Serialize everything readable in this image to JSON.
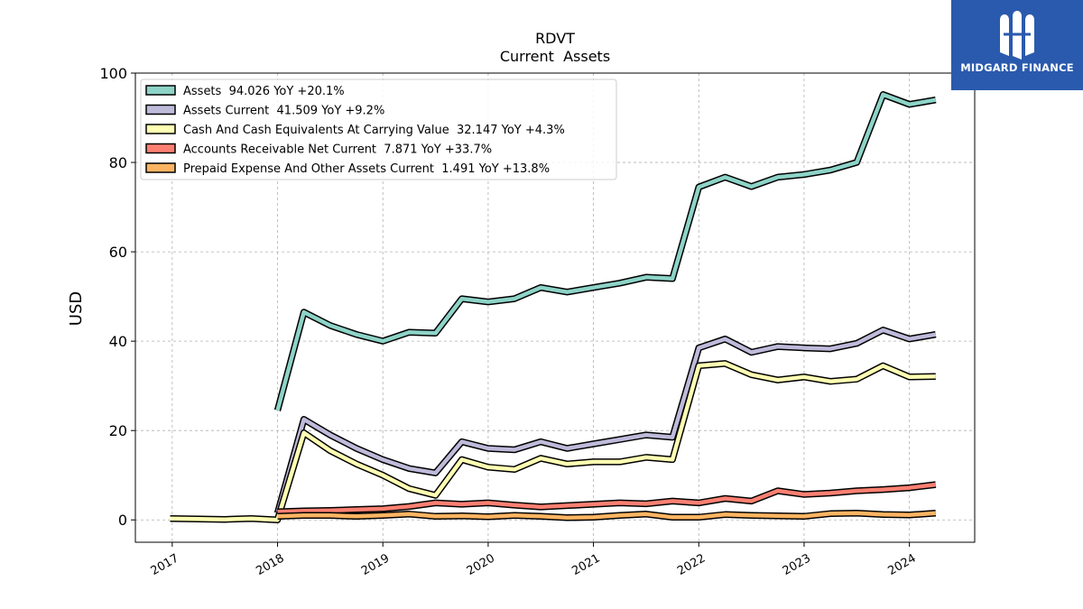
{
  "chart_data": {
    "type": "line",
    "title": "RDVT",
    "subtitle": "Current  Assets",
    "xlabel": "",
    "ylabel": "USD",
    "ylim": [
      -5,
      100
    ],
    "xlim": [
      2016.65,
      2024.62
    ],
    "yticks": [
      0,
      20,
      40,
      60,
      80,
      100
    ],
    "xticks": [
      "2017",
      "2018",
      "2019",
      "2020",
      "2021",
      "2022",
      "2023",
      "2024"
    ],
    "grid": true,
    "legend_position": "top-left",
    "series": [
      {
        "name": "Assets  94.026 YoY +20.1%",
        "color": "#8dd3c7",
        "x": [
          2018.0,
          2018.25,
          2018.5,
          2018.75,
          2019.0,
          2019.25,
          2019.5,
          2019.75,
          2020.0,
          2020.25,
          2020.5,
          2020.75,
          2021.0,
          2021.25,
          2021.5,
          2021.75,
          2022.0,
          2022.25,
          2022.5,
          2022.75,
          2023.0,
          2023.25,
          2023.5,
          2023.75,
          2024.0,
          2024.25
        ],
        "y": [
          24.5,
          46.5,
          43.5,
          41.5,
          40.0,
          42.0,
          41.8,
          49.5,
          48.8,
          49.5,
          52.0,
          51.0,
          52.0,
          53.0,
          54.3,
          54.0,
          74.5,
          76.7,
          74.6,
          76.7,
          77.3,
          78.3,
          80.0,
          95.2,
          93.0,
          94.0
        ]
      },
      {
        "name": "Assets Current  41.509 YoY +9.2%",
        "color": "#bebada",
        "x": [
          2018.0,
          2018.25,
          2018.5,
          2018.75,
          2019.0,
          2019.25,
          2019.5,
          2019.75,
          2020.0,
          2020.25,
          2020.5,
          2020.75,
          2021.0,
          2021.25,
          2021.5,
          2021.75,
          2022.0,
          2022.25,
          2022.5,
          2022.75,
          2023.0,
          2023.25,
          2023.5,
          2023.75,
          2024.0,
          2024.25
        ],
        "y": [
          1.5,
          22.5,
          19.0,
          16.0,
          13.5,
          11.5,
          10.5,
          17.5,
          16.0,
          15.7,
          17.5,
          16.0,
          17.0,
          18.0,
          19.0,
          18.5,
          38.5,
          40.5,
          37.5,
          38.8,
          38.5,
          38.3,
          39.5,
          42.5,
          40.5,
          41.5
        ]
      },
      {
        "name": "Cash And Cash Equivalents At Carrying Value  32.147 YoY +4.3%",
        "color": "#ffffb3",
        "x": [
          2016.98,
          2017.25,
          2017.5,
          2017.75,
          2018.0,
          2018.25,
          2018.5,
          2018.75,
          2019.0,
          2019.25,
          2019.5,
          2019.75,
          2020.0,
          2020.25,
          2020.5,
          2020.75,
          2021.0,
          2021.25,
          2021.5,
          2021.75,
          2022.0,
          2022.25,
          2022.5,
          2022.75,
          2023.0,
          2023.25,
          2023.5,
          2023.75,
          2024.0,
          2024.25
        ],
        "y": [
          0.3,
          0.2,
          0.1,
          0.3,
          0.0,
          19.5,
          15.5,
          12.5,
          10.0,
          7.0,
          5.5,
          13.5,
          11.8,
          11.3,
          13.8,
          12.5,
          13.0,
          13.0,
          14.0,
          13.5,
          34.5,
          35.0,
          32.5,
          31.3,
          32.0,
          31.0,
          31.5,
          34.5,
          32.0,
          32.1
        ]
      },
      {
        "name": "Accounts Receivable Net Current  7.871 YoY +33.7%",
        "color": "#fb8072",
        "x": [
          2018.0,
          2018.25,
          2018.5,
          2018.75,
          2019.0,
          2019.25,
          2019.5,
          2019.75,
          2020.0,
          2020.25,
          2020.5,
          2020.75,
          2021.0,
          2021.25,
          2021.5,
          2021.75,
          2022.0,
          2022.25,
          2022.5,
          2022.75,
          2023.0,
          2023.25,
          2023.5,
          2023.75,
          2024.0,
          2024.25
        ],
        "y": [
          1.8,
          2.0,
          2.1,
          2.3,
          2.5,
          3.0,
          3.8,
          3.5,
          3.8,
          3.3,
          2.9,
          3.2,
          3.5,
          3.8,
          3.6,
          4.2,
          3.8,
          4.8,
          4.2,
          6.5,
          5.7,
          6.0,
          6.5,
          6.8,
          7.2,
          7.9
        ]
      },
      {
        "name": "Prepaid Expense And Other Assets Current  1.491 YoY +13.8%",
        "color": "#fdb462",
        "x": [
          2018.0,
          2018.25,
          2018.5,
          2018.75,
          2019.0,
          2019.25,
          2019.5,
          2019.75,
          2020.0,
          2020.25,
          2020.5,
          2020.75,
          2021.0,
          2021.25,
          2021.5,
          2021.75,
          2022.0,
          2022.25,
          2022.5,
          2022.75,
          2023.0,
          2023.25,
          2023.5,
          2023.75,
          2024.0,
          2024.25
        ],
        "y": [
          0.8,
          1.0,
          1.0,
          0.8,
          1.0,
          1.3,
          0.8,
          0.9,
          0.7,
          1.0,
          0.8,
          0.5,
          0.6,
          1.0,
          1.3,
          0.6,
          0.6,
          1.2,
          1.0,
          0.9,
          0.8,
          1.4,
          1.5,
          1.2,
          1.1,
          1.5
        ]
      }
    ]
  },
  "logo": {
    "text": "MIDGARD FINANCE",
    "bg_color": "#2a5aad"
  }
}
